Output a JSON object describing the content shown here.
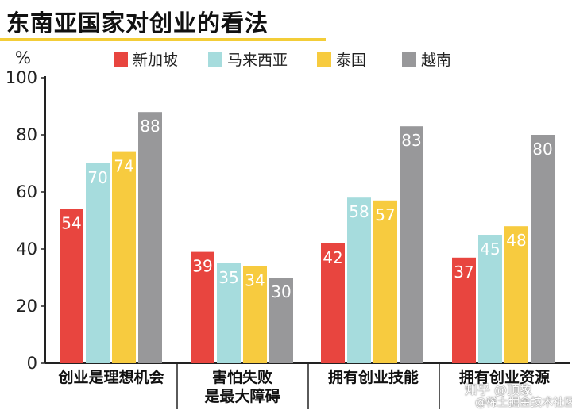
{
  "chart_data": {
    "type": "bar",
    "title": "东南亚国家对创业的看法",
    "ylabel": "%",
    "ylim": [
      0,
      100
    ],
    "yticks": [
      0,
      20,
      40,
      60,
      80,
      100
    ],
    "grid": false,
    "legend_position": "top",
    "categories": [
      [
        "创业是理想机会"
      ],
      [
        "害怕失败",
        "是最大障碍"
      ],
      [
        "拥有创业技能"
      ],
      [
        "拥有创业资源"
      ]
    ],
    "series": [
      {
        "name": "新加坡",
        "color": "#e8453f",
        "values": [
          54,
          39,
          42,
          37
        ]
      },
      {
        "name": "马来西亚",
        "color": "#a6dcdd",
        "values": [
          70,
          35,
          58,
          45
        ]
      },
      {
        "name": "泰国",
        "color": "#f7cb3f",
        "values": [
          74,
          34,
          57,
          48
        ]
      },
      {
        "name": "越南",
        "color": "#98989a",
        "values": [
          88,
          30,
          83,
          80
        ]
      }
    ]
  },
  "watermark": {
    "line1": "知乎 @顶象",
    "line2": "@稀土掘金技术社区"
  }
}
